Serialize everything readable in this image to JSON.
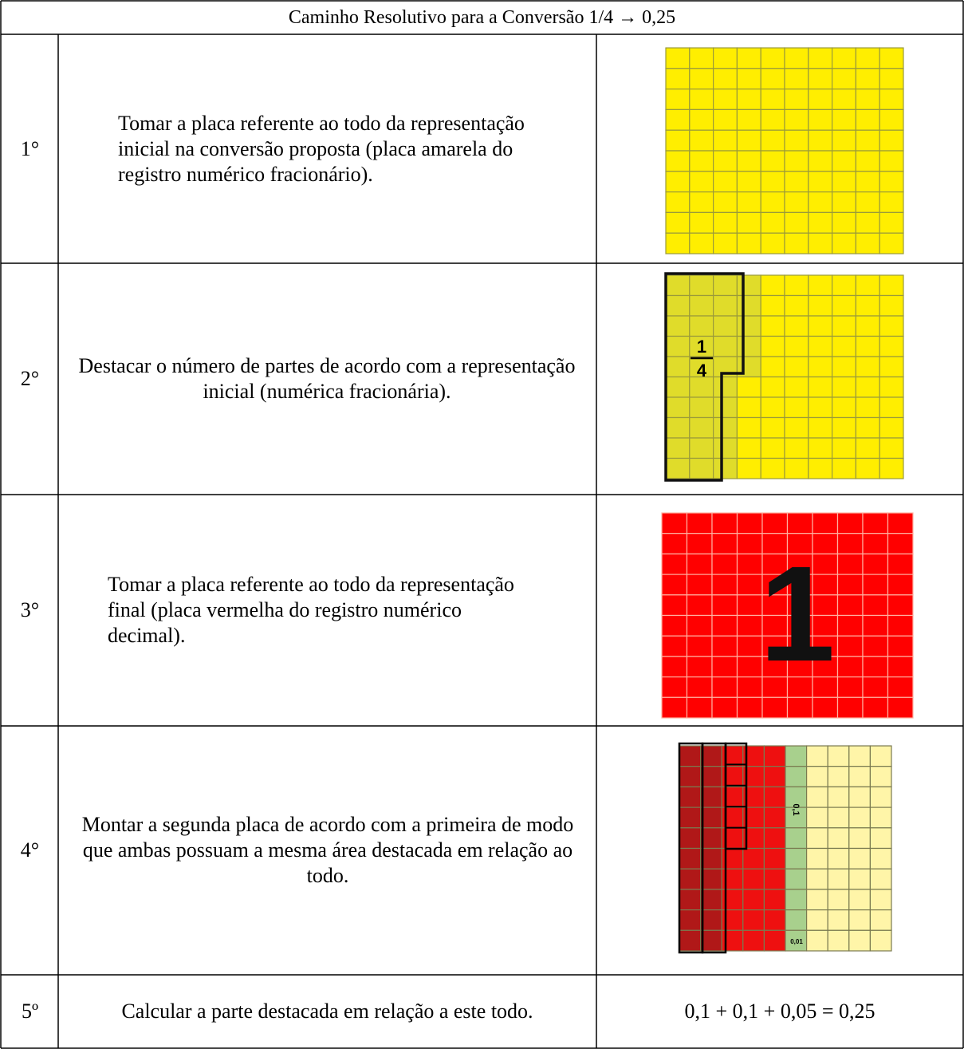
{
  "table": {
    "title": "Caminho Resolutivo para a Conversão 1/4 → 0,25",
    "rows": [
      {
        "step": "1°",
        "text": "Tomar a placa referente ao todo da representação inicial na conversão proposta (placa amarela do registro numérico fracionário)."
      },
      {
        "step": "2°",
        "text": "Destacar o número de partes de acordo com a representação inicial (numérica fracionária).",
        "figure_labels": {
          "numerator": "1",
          "denominator": "4"
        }
      },
      {
        "step": "3°",
        "text": "Tomar a placa referente ao todo da representação final (placa vermelha do registro numérico decimal).",
        "figure_labels": {
          "big": "1"
        }
      },
      {
        "step": "4°",
        "text": "Montar a segunda placa de acordo com a primeira de modo que ambas possuam a mesma área destacada em relação ao todo.",
        "figure_labels": {
          "tenth": "0,1",
          "hundredth": "0,01"
        }
      },
      {
        "step": "5º",
        "text": "Calcular a parte destacada em relação a este todo.",
        "result": "0,1 + 0,1 + 0,05 = 0,25"
      }
    ]
  }
}
